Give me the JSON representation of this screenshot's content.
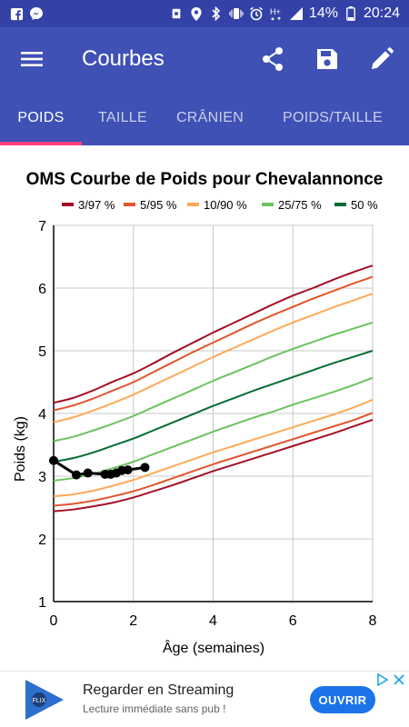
{
  "status_bar": {
    "battery": "14%",
    "time": "20:24",
    "icons": [
      "facebook-icon",
      "messenger-icon",
      "android-icon",
      "location-icon",
      "bluetooth-icon",
      "vibrate-icon",
      "alarm-icon",
      "h-plus-icon",
      "signal-icon",
      "battery-icon"
    ]
  },
  "app_bar": {
    "title": "Courbes",
    "icons": [
      "menu-icon",
      "share-icon",
      "save-icon",
      "edit-icon"
    ]
  },
  "tabs": [
    {
      "label": "POIDS",
      "active": true
    },
    {
      "label": "TAILLE",
      "active": false
    },
    {
      "label": "CRÂNIEN",
      "active": false
    },
    {
      "label": "POIDS/TAILLE",
      "active": false
    }
  ],
  "colors": {
    "status_bar": "#3442a8",
    "app_bar": "#3f51b5",
    "tab_indicator": "#ff4081",
    "ad_button": "#1a73e8"
  },
  "chart_data": {
    "type": "line",
    "title": "OMS Courbe de Poids pour Chevalannonce",
    "xlabel": "Âge (semaines)",
    "ylabel": "Poids (kg)",
    "xlim": [
      0,
      8
    ],
    "ylim": [
      1,
      7
    ],
    "xticks": [
      0,
      2,
      4,
      6,
      8
    ],
    "yticks": [
      1,
      2,
      3,
      4,
      5,
      6,
      7
    ],
    "grid": true,
    "legend_position": "top",
    "x": [
      0,
      0.5,
      1,
      1.5,
      2,
      2.5,
      3,
      3.5,
      4,
      4.5,
      5,
      5.5,
      6,
      6.5,
      7,
      7.5,
      8
    ],
    "series": [
      {
        "name": "3/97 %",
        "color": "#a50f26",
        "values": [
          4.17,
          4.25,
          4.37,
          4.51,
          4.64,
          4.8,
          4.97,
          5.13,
          5.29,
          5.44,
          5.59,
          5.74,
          5.88,
          6.0,
          6.13,
          6.25,
          6.36
        ]
      },
      {
        "name": "5/95 %",
        "color": "#e3542c",
        "values": [
          4.05,
          4.13,
          4.24,
          4.37,
          4.5,
          4.66,
          4.82,
          4.98,
          5.13,
          5.28,
          5.43,
          5.57,
          5.7,
          5.83,
          5.95,
          6.07,
          6.18
        ]
      },
      {
        "name": "10/90 %",
        "color": "#fdaa57",
        "values": [
          3.86,
          3.94,
          4.05,
          4.17,
          4.3,
          4.45,
          4.6,
          4.75,
          4.9,
          5.04,
          5.18,
          5.32,
          5.45,
          5.57,
          5.69,
          5.8,
          5.91
        ]
      },
      {
        "name": "25/75 %",
        "color": "#6cc260",
        "values": [
          3.56,
          3.63,
          3.73,
          3.84,
          3.96,
          4.1,
          4.24,
          4.38,
          4.52,
          4.65,
          4.78,
          4.91,
          5.03,
          5.14,
          5.25,
          5.35,
          5.45
        ]
      },
      {
        "name": "50 %",
        "color": "#046c33",
        "values": [
          3.23,
          3.29,
          3.38,
          3.49,
          3.6,
          3.73,
          3.86,
          3.99,
          4.12,
          4.24,
          4.36,
          4.47,
          4.58,
          4.69,
          4.8,
          4.9,
          5.0
        ]
      },
      {
        "name": "",
        "color": "#6cc260",
        "values": [
          2.93,
          2.97,
          3.04,
          3.13,
          3.23,
          3.35,
          3.47,
          3.59,
          3.71,
          3.82,
          3.93,
          4.03,
          4.14,
          4.24,
          4.34,
          4.45,
          4.57
        ]
      },
      {
        "name": "",
        "color": "#fdaa57",
        "values": [
          2.68,
          2.71,
          2.77,
          2.85,
          2.94,
          3.05,
          3.16,
          3.27,
          3.38,
          3.48,
          3.58,
          3.68,
          3.78,
          3.88,
          3.98,
          4.09,
          4.22
        ]
      },
      {
        "name": "",
        "color": "#e3542c",
        "values": [
          2.53,
          2.56,
          2.61,
          2.68,
          2.76,
          2.86,
          2.97,
          3.08,
          3.19,
          3.29,
          3.39,
          3.49,
          3.59,
          3.69,
          3.79,
          3.89,
          4.01
        ]
      },
      {
        "name": "",
        "color": "#a50f26",
        "values": [
          2.44,
          2.47,
          2.52,
          2.58,
          2.66,
          2.76,
          2.86,
          2.97,
          3.08,
          3.18,
          3.28,
          3.38,
          3.48,
          3.58,
          3.68,
          3.79,
          3.9
        ]
      }
    ],
    "measurements": {
      "color": "#000000",
      "x": [
        0,
        0.57,
        0.86,
        1.29,
        1.43,
        1.57,
        1.71,
        1.86,
        2.29
      ],
      "y": [
        3.25,
        3.02,
        3.05,
        3.03,
        3.03,
        3.05,
        3.09,
        3.1,
        3.14
      ]
    }
  },
  "ad": {
    "title": "Regarder en Streaming",
    "subtitle": "Lecture immédiate sans pub !",
    "cta": "OUVRIR",
    "logo_text": "FLIX"
  }
}
